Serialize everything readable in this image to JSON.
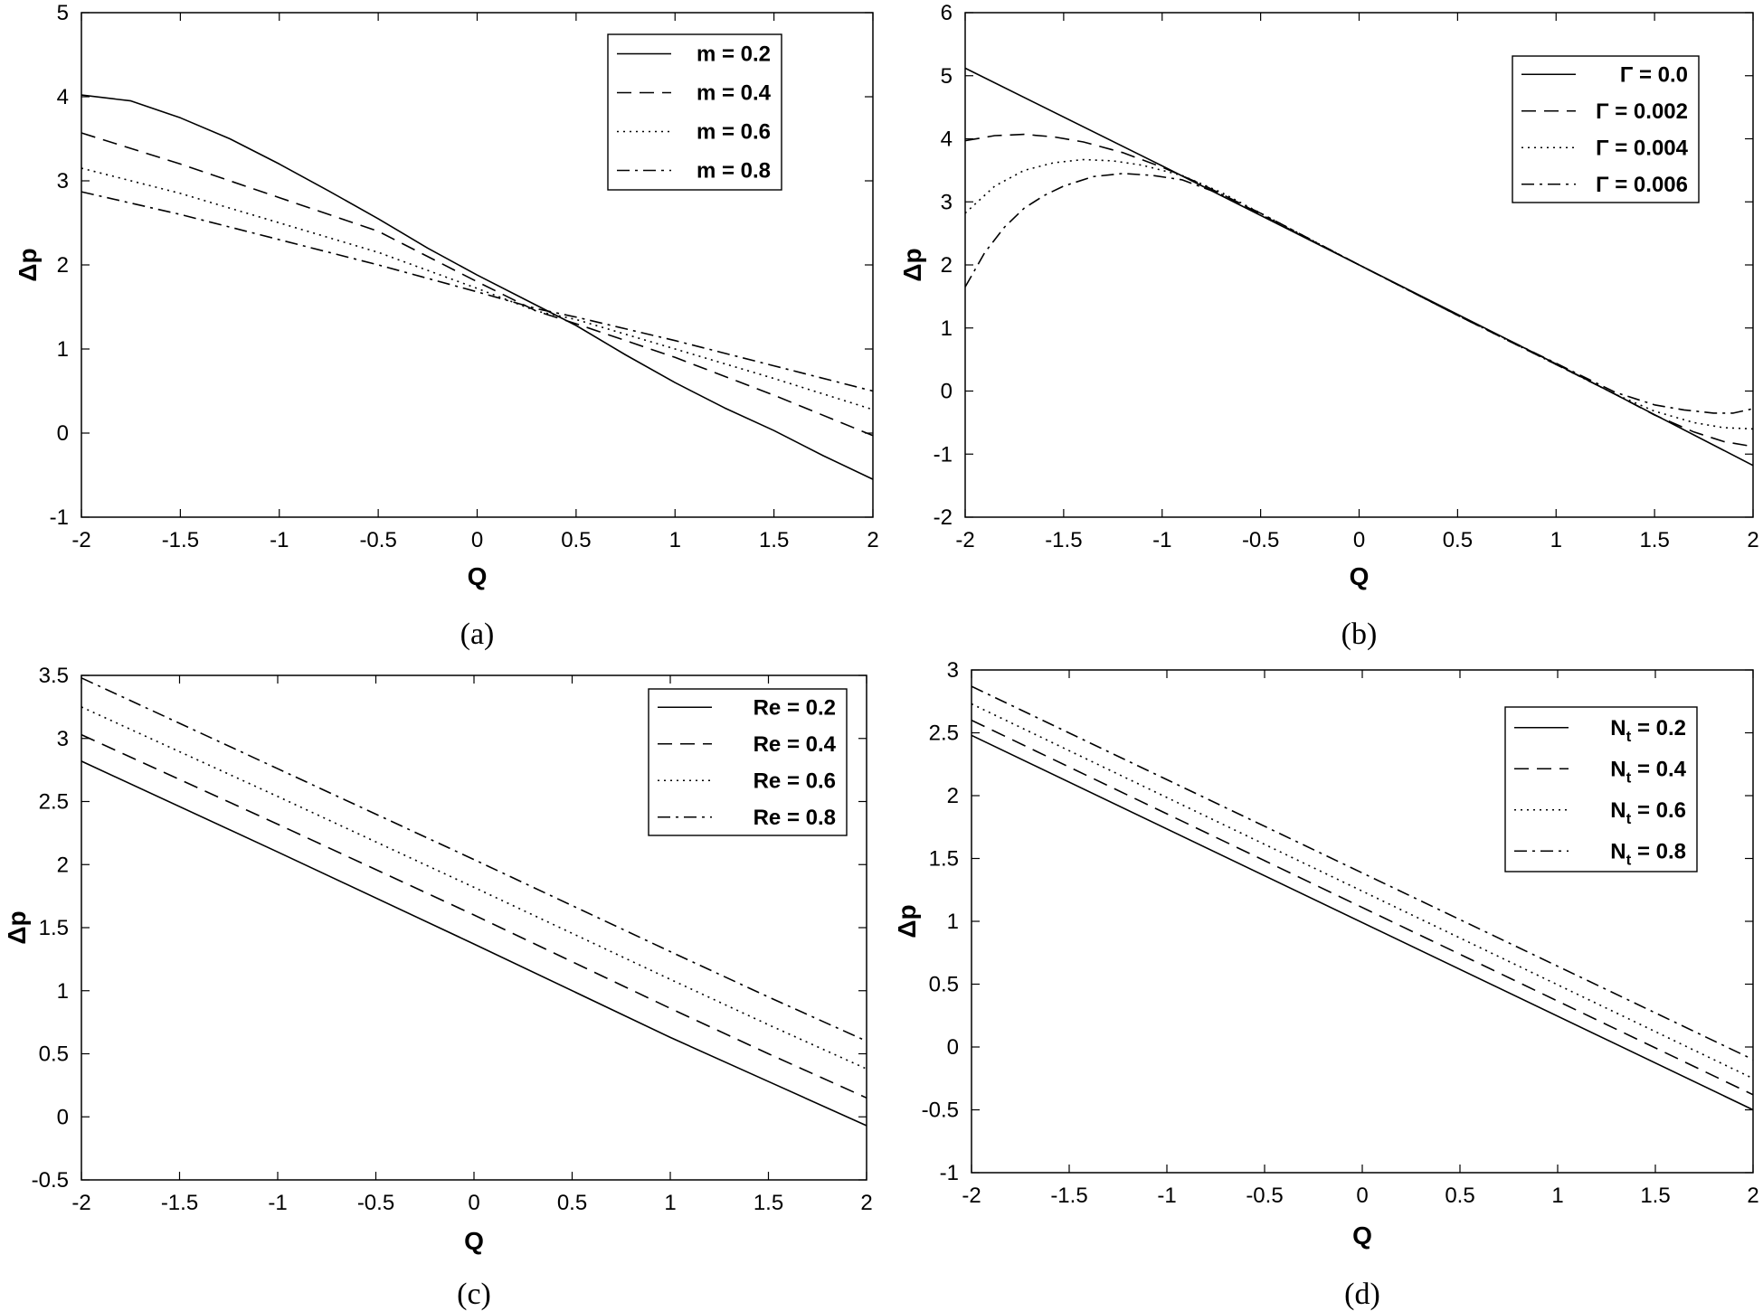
{
  "chart_data": [
    {
      "type": "line",
      "caption": "(a)",
      "xlabel": "Q",
      "ylabel": "Δp",
      "xlim": [
        -2,
        2
      ],
      "ylim": [
        -1,
        5
      ],
      "xticks": [
        -2,
        -1.5,
        -1,
        -0.5,
        0,
        0.5,
        1,
        1.5,
        2
      ],
      "yticks": [
        -1,
        0,
        1,
        2,
        3,
        4,
        5
      ],
      "legend_position": "top-right",
      "series": [
        {
          "name": "m = 0.2",
          "style": "solid",
          "x": [
            -2,
            -1.75,
            -1.5,
            -1.25,
            -1,
            -0.75,
            -0.5,
            -0.25,
            0,
            0.25,
            0.5,
            0.75,
            1,
            1.25,
            1.5,
            1.75,
            2
          ],
          "y": [
            4.02,
            3.95,
            3.75,
            3.5,
            3.2,
            2.88,
            2.55,
            2.2,
            1.88,
            1.58,
            1.28,
            0.93,
            0.6,
            0.3,
            0.03,
            -0.27,
            -0.55
          ]
        },
        {
          "name": "m = 0.4",
          "style": "dashed",
          "x": [
            -2,
            -1.5,
            -1,
            -0.5,
            0,
            0.3,
            0.5,
            1,
            1.5,
            2
          ],
          "y": [
            3.57,
            3.2,
            2.8,
            2.4,
            1.8,
            1.45,
            1.3,
            0.9,
            0.45,
            -0.03
          ]
        },
        {
          "name": "m = 0.6",
          "style": "dotted",
          "x": [
            -2,
            -1.5,
            -1,
            -0.5,
            0,
            0.3,
            0.5,
            1,
            1.5,
            2
          ],
          "y": [
            3.15,
            2.85,
            2.5,
            2.15,
            1.72,
            1.45,
            1.35,
            1.0,
            0.65,
            0.28
          ]
        },
        {
          "name": "m = 0.8",
          "style": "dashdot",
          "x": [
            -2,
            -1.5,
            -1,
            -0.5,
            0,
            0.3,
            0.5,
            1,
            1.5,
            2
          ],
          "y": [
            2.87,
            2.6,
            2.3,
            2.0,
            1.68,
            1.48,
            1.38,
            1.1,
            0.8,
            0.5
          ]
        }
      ]
    },
    {
      "type": "line",
      "caption": "(b)",
      "xlabel": "Q",
      "ylabel": "Δp",
      "xlim": [
        -2,
        2
      ],
      "ylim": [
        -2,
        6
      ],
      "xticks": [
        -2,
        -1.5,
        -1,
        -0.5,
        0,
        0.5,
        1,
        1.5,
        2
      ],
      "yticks": [
        -2,
        -1,
        0,
        1,
        2,
        3,
        4,
        5,
        6
      ],
      "legend_position": "top-right",
      "series": [
        {
          "name": "Γ = 0.0",
          "style": "solid",
          "x": [
            -2,
            -1,
            0,
            1,
            2
          ],
          "y": [
            5.12,
            3.57,
            2.0,
            0.43,
            -1.18
          ]
        },
        {
          "name": "Γ = 0.002",
          "style": "dashed",
          "x": [
            -2,
            -1.85,
            -1.7,
            -1.55,
            -1.4,
            -1.2,
            -1.0,
            -0.8,
            -0.6,
            -0.5,
            0,
            0.5,
            1.0,
            1.3,
            1.5,
            1.7,
            1.85,
            2.0
          ],
          "y": [
            3.97,
            4.05,
            4.07,
            4.03,
            3.95,
            3.78,
            3.55,
            3.28,
            2.97,
            2.8,
            2.0,
            1.2,
            0.42,
            -0.05,
            -0.38,
            -0.65,
            -0.8,
            -0.88
          ]
        },
        {
          "name": "Γ = 0.004",
          "style": "dotted",
          "x": [
            -2,
            -1.85,
            -1.7,
            -1.55,
            -1.4,
            -1.25,
            -1.1,
            -0.9,
            -0.7,
            -0.5,
            0,
            0.5,
            1.0,
            1.3,
            1.5,
            1.7,
            1.85,
            2.0
          ],
          "y": [
            2.82,
            3.25,
            3.5,
            3.62,
            3.67,
            3.65,
            3.58,
            3.42,
            3.15,
            2.82,
            2.0,
            1.2,
            0.42,
            -0.05,
            -0.32,
            -0.5,
            -0.58,
            -0.6
          ]
        },
        {
          "name": "Γ = 0.006",
          "style": "dashdot",
          "x": [
            -2,
            -1.9,
            -1.8,
            -1.7,
            -1.6,
            -1.5,
            -1.35,
            -1.2,
            -1.05,
            -0.9,
            -0.7,
            -0.5,
            0,
            0.5,
            1.0,
            1.3,
            1.5,
            1.65,
            1.8,
            1.9,
            2.0
          ],
          "y": [
            1.65,
            2.2,
            2.6,
            2.9,
            3.1,
            3.25,
            3.4,
            3.45,
            3.42,
            3.35,
            3.12,
            2.82,
            2.0,
            1.2,
            0.44,
            -0.02,
            -0.22,
            -0.3,
            -0.35,
            -0.35,
            -0.28
          ]
        }
      ]
    },
    {
      "type": "line",
      "caption": "(c)",
      "xlabel": "Q",
      "ylabel": "Δp",
      "xlim": [
        -2,
        2
      ],
      "ylim": [
        -0.5,
        3.5
      ],
      "xticks": [
        -2,
        -1.5,
        -1,
        -0.5,
        0,
        0.5,
        1,
        1.5,
        2
      ],
      "yticks": [
        -0.5,
        0,
        0.5,
        1,
        1.5,
        2,
        2.5,
        3,
        3.5
      ],
      "legend_position": "top-right",
      "series": [
        {
          "name": "Re = 0.2",
          "style": "solid",
          "x": [
            -2,
            -1,
            0,
            1,
            1.5,
            2
          ],
          "y": [
            2.82,
            2.1,
            1.37,
            0.63,
            0.28,
            -0.07
          ]
        },
        {
          "name": "Re = 0.4",
          "style": "dashed",
          "x": [
            -2,
            -1,
            0,
            1,
            1.5,
            2
          ],
          "y": [
            3.03,
            2.32,
            1.6,
            0.86,
            0.5,
            0.15
          ]
        },
        {
          "name": "Re = 0.6",
          "style": "dotted",
          "x": [
            -2,
            -1,
            0,
            1,
            1.5,
            2
          ],
          "y": [
            3.25,
            2.54,
            1.82,
            1.09,
            0.73,
            0.38
          ]
        },
        {
          "name": "Re = 0.8",
          "style": "dashdot",
          "x": [
            -2,
            -1,
            0,
            1,
            1.5,
            2
          ],
          "y": [
            3.48,
            2.76,
            2.04,
            1.31,
            0.95,
            0.6
          ]
        }
      ]
    },
    {
      "type": "line",
      "caption": "(d)",
      "xlabel": "Q",
      "ylabel": "Δp",
      "xlim": [
        -2,
        2
      ],
      "ylim": [
        -1,
        3
      ],
      "xticks": [
        -2,
        -1.5,
        -1,
        -0.5,
        0,
        0.5,
        1,
        1.5,
        2
      ],
      "yticks": [
        -1,
        -0.5,
        0,
        0.5,
        1,
        1.5,
        2,
        2.5,
        3
      ],
      "legend_position": "top-right",
      "series": [
        {
          "name": "N",
          "name_sub": "t",
          "name_value": " = 0.2",
          "style": "solid",
          "x": [
            -2,
            2
          ],
          "y": [
            2.48,
            -0.5
          ]
        },
        {
          "name": "N",
          "name_sub": "t",
          "name_value": " = 0.4",
          "style": "dashed",
          "x": [
            -2,
            2
          ],
          "y": [
            2.6,
            -0.38
          ]
        },
        {
          "name": "N",
          "name_sub": "t",
          "name_value": " = 0.6",
          "style": "dotted",
          "x": [
            -2,
            2
          ],
          "y": [
            2.73,
            -0.25
          ]
        },
        {
          "name": "N",
          "name_sub": "t",
          "name_value": " = 0.8",
          "style": "dashdot",
          "x": [
            -2,
            2
          ],
          "y": [
            2.87,
            -0.1
          ]
        }
      ]
    }
  ]
}
